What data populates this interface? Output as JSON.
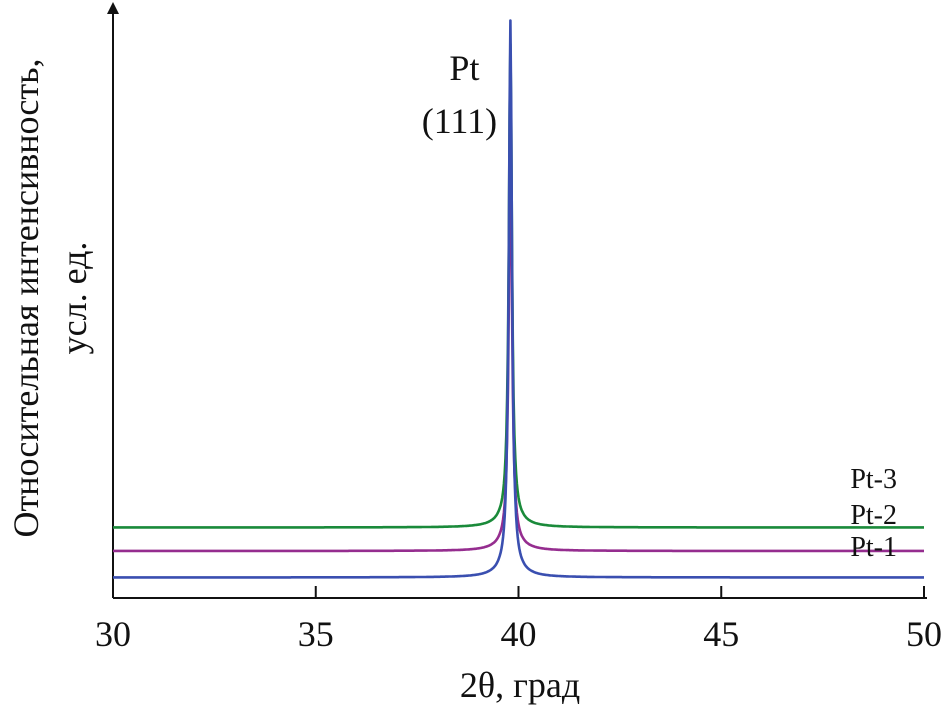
{
  "chart_data": {
    "type": "line",
    "xlabel": "2θ, град",
    "ylabel_lines": [
      "Относительная интенсивность,",
      "усл. ед."
    ],
    "xlim": [
      30,
      50
    ],
    "ylim": [
      0,
      1
    ],
    "x_ticks": [
      30,
      35,
      40,
      45,
      50
    ],
    "y_ticks_shown": false,
    "grid": false,
    "legend": "none",
    "annotation": {
      "lines": [
        "Pt",
        "(111)"
      ],
      "x": 39.9
    },
    "peak_x": 39.8,
    "series": [
      {
        "name": "Pt-3",
        "color": "#1a8a3a",
        "baseline": 0.12,
        "peak_height": 0.81
      },
      {
        "name": "Pt-2",
        "color": "#952d8f",
        "baseline": 0.08,
        "peak_height": 0.7
      },
      {
        "name": "Pt-1",
        "color": "#3a4fb0",
        "baseline": 0.035,
        "peak_height": 0.935
      }
    ]
  }
}
